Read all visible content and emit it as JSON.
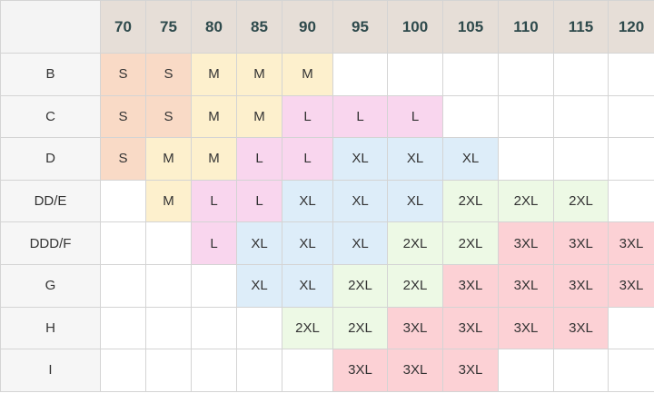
{
  "table": {
    "columns": [
      "70",
      "75",
      "80",
      "85",
      "90",
      "95",
      "100",
      "105",
      "110",
      "115",
      "120"
    ],
    "rows": [
      {
        "label": "B",
        "cells": [
          "S",
          "S",
          "M",
          "M",
          "M",
          null,
          null,
          null,
          null,
          null,
          null
        ]
      },
      {
        "label": "C",
        "cells": [
          "S",
          "S",
          "M",
          "M",
          "L",
          "L",
          "L",
          null,
          null,
          null,
          null
        ]
      },
      {
        "label": "D",
        "cells": [
          "S",
          "M",
          "M",
          "L",
          "L",
          "XL",
          "XL",
          "XL",
          null,
          null,
          null
        ]
      },
      {
        "label": "DD/E",
        "cells": [
          null,
          "M",
          "L",
          "L",
          "XL",
          "XL",
          "XL",
          "2XL",
          "2XL",
          "2XL",
          null
        ]
      },
      {
        "label": "DDD/F",
        "cells": [
          null,
          null,
          "L",
          "XL",
          "XL",
          "XL",
          "2XL",
          "2XL",
          "3XL",
          "3XL",
          "3XL"
        ]
      },
      {
        "label": "G",
        "cells": [
          null,
          null,
          null,
          "XL",
          "XL",
          "2XL",
          "2XL",
          "3XL",
          "3XL",
          "3XL",
          "3XL"
        ]
      },
      {
        "label": "H",
        "cells": [
          null,
          null,
          null,
          null,
          "2XL",
          "2XL",
          "3XL",
          "3XL",
          "3XL",
          "3XL",
          null
        ]
      },
      {
        "label": "I",
        "cells": [
          null,
          null,
          null,
          null,
          null,
          "3XL",
          "3XL",
          "3XL",
          null,
          null,
          null
        ]
      }
    ],
    "size_colors": [
      {
        "size": "S",
        "color": "#f9dac6"
      },
      {
        "size": "M",
        "color": "#fdf0cd"
      },
      {
        "size": "L",
        "color": "#f9d6ee"
      },
      {
        "size": "XL",
        "color": "#ddedf9"
      },
      {
        "size": "2XL",
        "color": "#edf9e5"
      },
      {
        "size": "3XL",
        "color": "#fcd1d5"
      }
    ]
  }
}
